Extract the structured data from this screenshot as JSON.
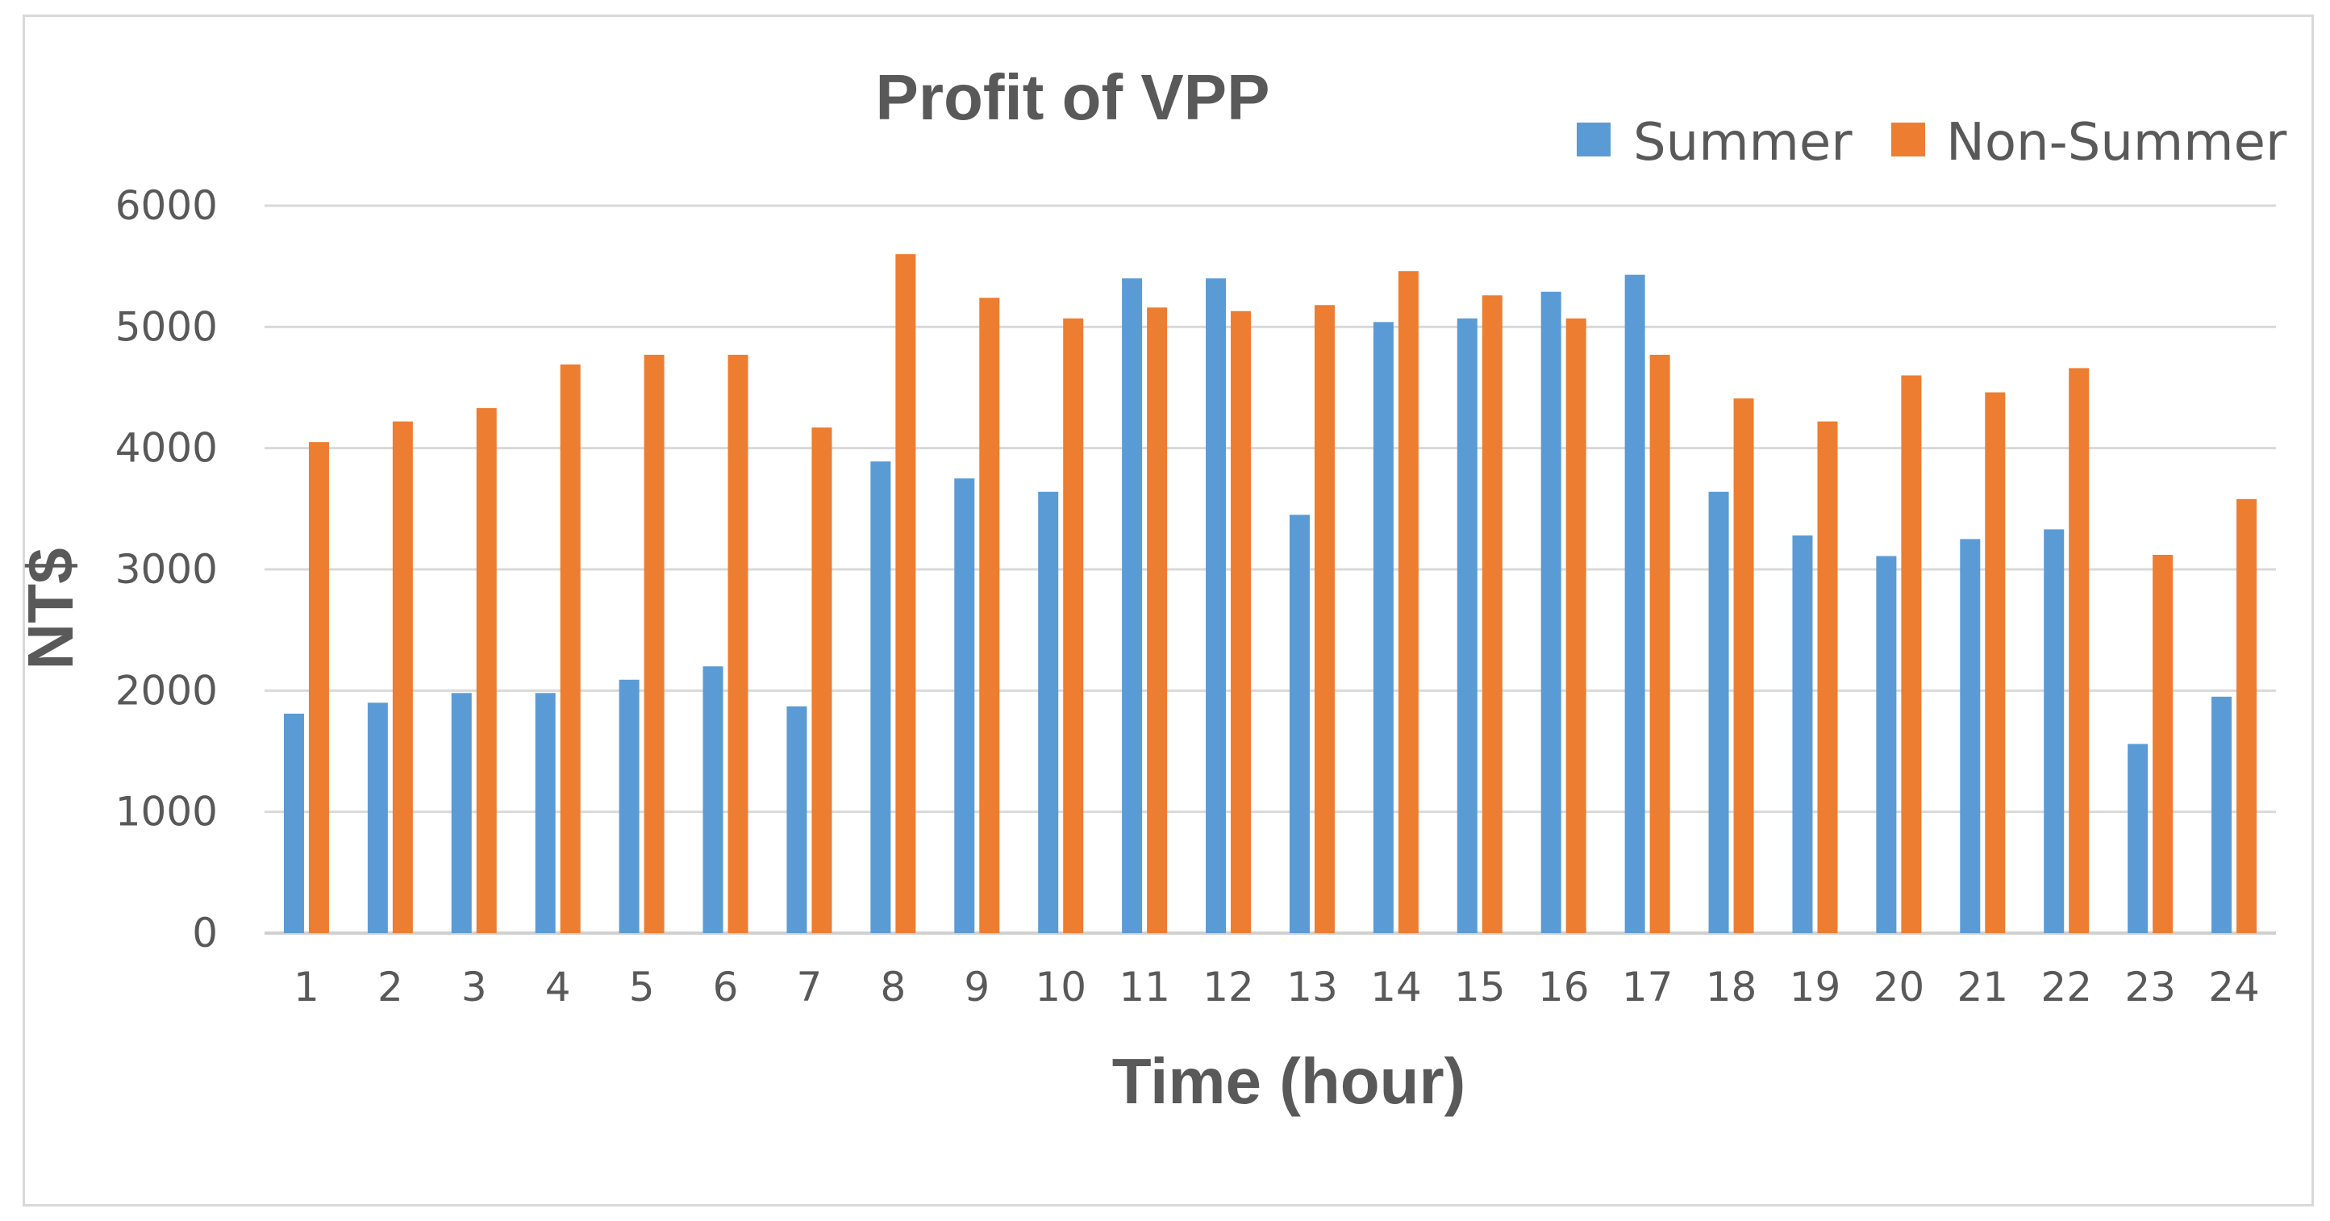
{
  "chart_data": {
    "type": "bar",
    "title": "Profit of VPP",
    "xlabel": "Time (hour)",
    "ylabel": "NT$",
    "ylim": [
      0,
      6000
    ],
    "yticks": [
      "0",
      "1000",
      "2000",
      "3000",
      "4000",
      "5000",
      "6000"
    ],
    "grid": true,
    "legend_position": "top-right",
    "categories": [
      "1",
      "2",
      "3",
      "4",
      "5",
      "6",
      "7",
      "8",
      "9",
      "10",
      "11",
      "12",
      "13",
      "14",
      "15",
      "16",
      "17",
      "18",
      "19",
      "20",
      "21",
      "22",
      "23",
      "24"
    ],
    "series": [
      {
        "name": "Summer",
        "color": "#5b9bd5",
        "values": [
          1810,
          1900,
          1980,
          1980,
          2090,
          2200,
          1870,
          3890,
          3750,
          3640,
          5400,
          5400,
          3450,
          5040,
          5070,
          5290,
          5430,
          3640,
          3280,
          3110,
          3250,
          3330,
          1560,
          1950
        ]
      },
      {
        "name": "Non-Summer",
        "color": "#ed7d31",
        "values": [
          4050,
          4220,
          4330,
          4690,
          4770,
          4770,
          4170,
          5600,
          5240,
          5070,
          5160,
          5130,
          5180,
          5460,
          5260,
          5070,
          4770,
          4410,
          4220,
          4600,
          4460,
          4660,
          3120,
          3580
        ]
      }
    ]
  }
}
